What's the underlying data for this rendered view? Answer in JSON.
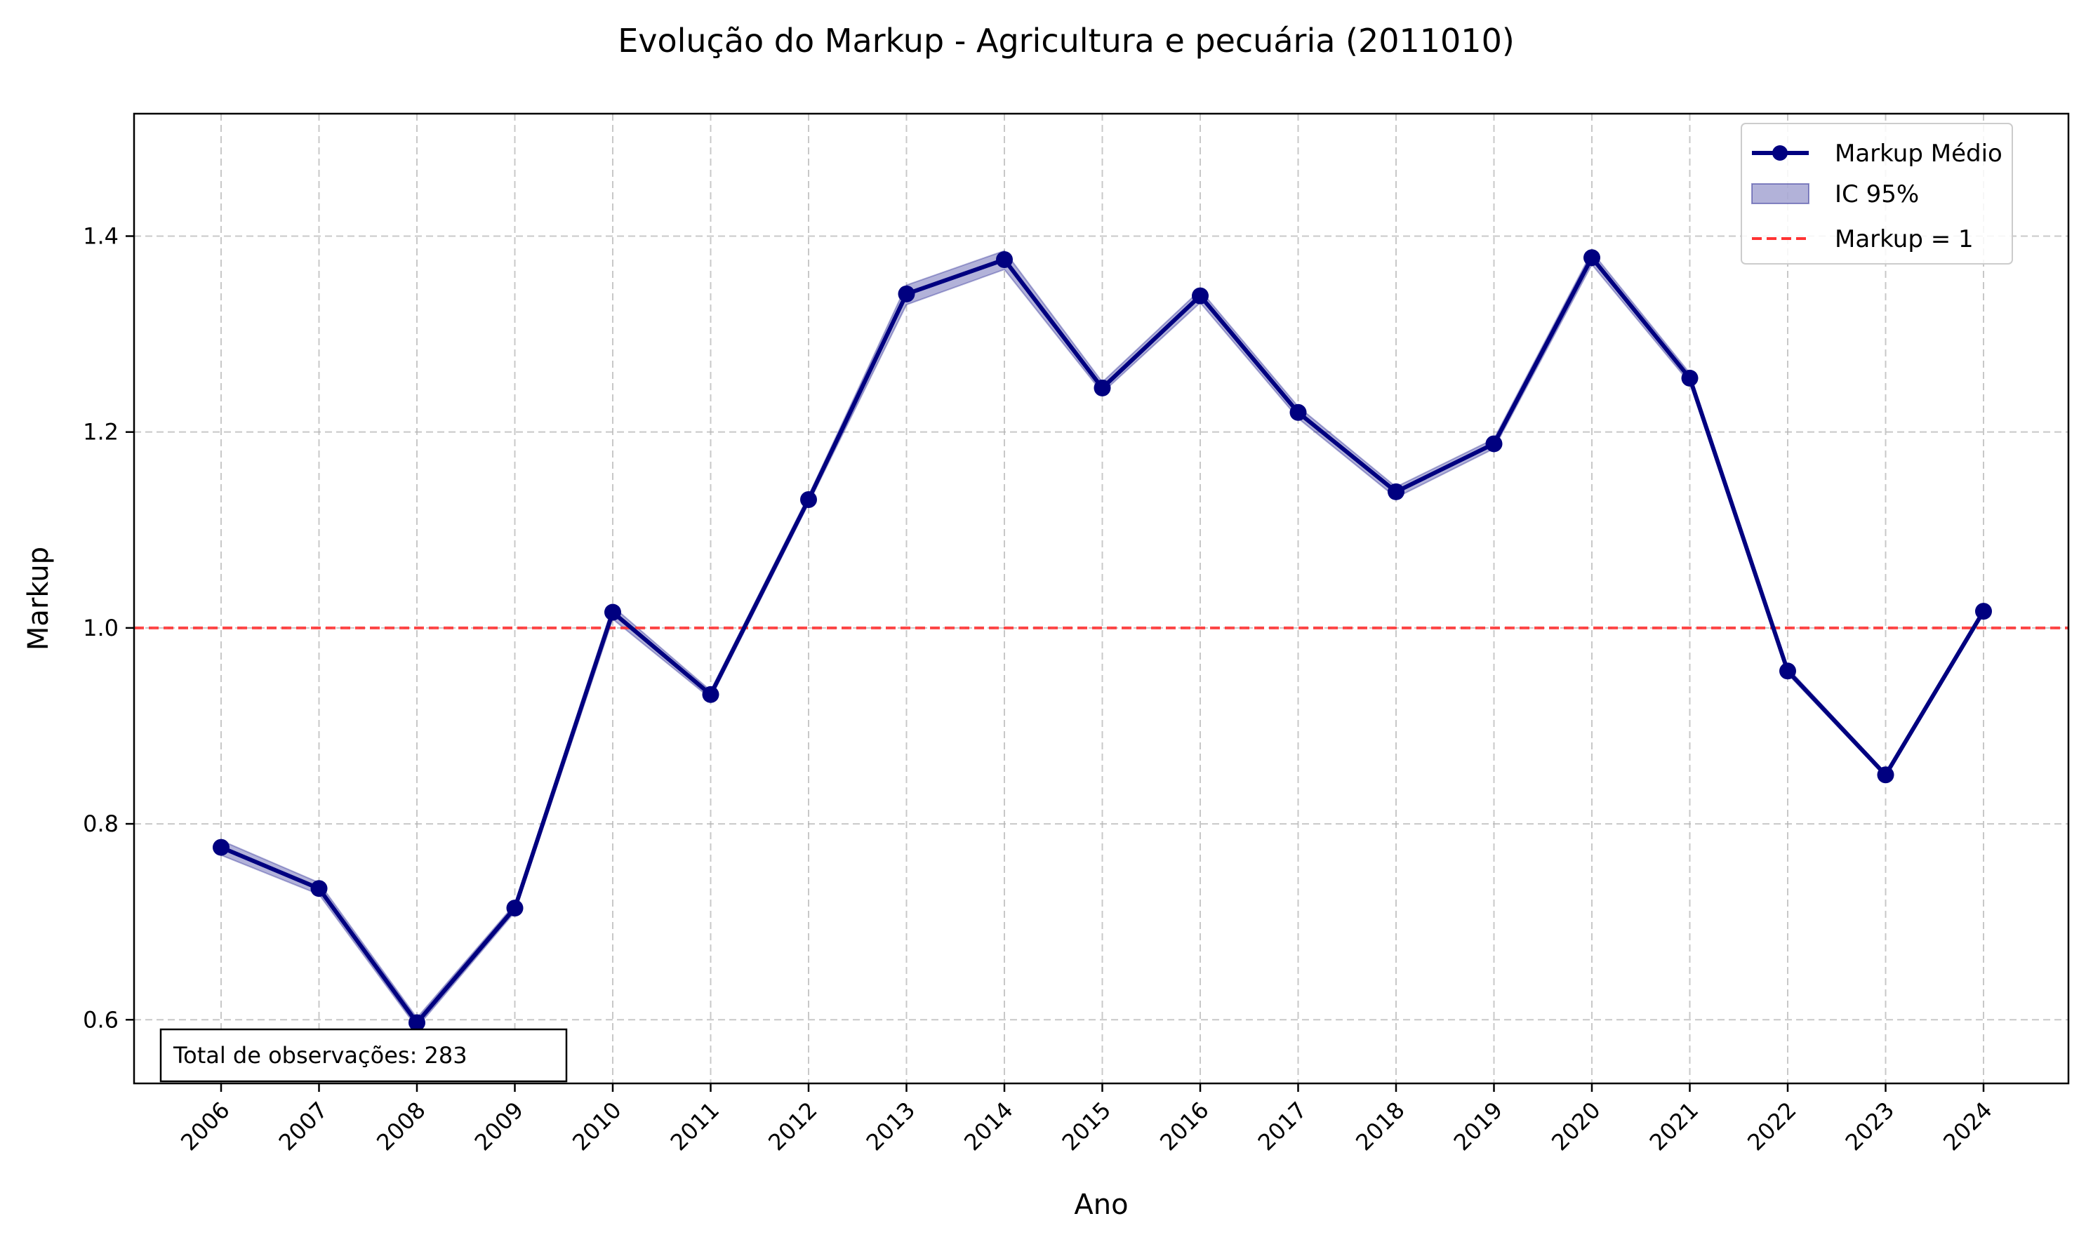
{
  "chart_data": {
    "type": "line",
    "title": "Evolução do Markup - Agricultura e pecuária (2011010)",
    "xlabel": "Ano",
    "ylabel": "Markup",
    "x": [
      "2006",
      "2007",
      "2008",
      "2009",
      "2010",
      "2011",
      "2012",
      "2013",
      "2014",
      "2015",
      "2016",
      "2017",
      "2018",
      "2019",
      "2020",
      "2021",
      "2022",
      "2023",
      "2024"
    ],
    "series": [
      {
        "name": "Markup Médio",
        "color": "#000080",
        "values": [
          0.776,
          0.734,
          0.597,
          0.714,
          1.016,
          0.932,
          1.131,
          1.341,
          1.376,
          1.245,
          1.339,
          1.22,
          1.139,
          1.188,
          1.378,
          1.255,
          0.956,
          0.85,
          1.017
        ]
      }
    ],
    "ci": {
      "name": "IC 95%",
      "color": "#000080",
      "lower": [
        0.768,
        0.728,
        0.592,
        0.71,
        1.009,
        0.928,
        1.127,
        1.33,
        1.366,
        1.24,
        1.332,
        1.214,
        1.133,
        1.183,
        1.371,
        1.25,
        0.953,
        0.848,
        1.014
      ],
      "upper": [
        0.783,
        0.74,
        0.602,
        0.718,
        1.022,
        0.936,
        1.135,
        1.35,
        1.385,
        1.251,
        1.345,
        1.226,
        1.144,
        1.193,
        1.384,
        1.26,
        0.959,
        0.852,
        1.02
      ]
    },
    "reference_line": {
      "name": "Markup = 1",
      "y": 1.0,
      "color": "#ff3333",
      "style": "dashed"
    },
    "yticks": [
      0.6,
      0.8,
      1.0,
      1.2,
      1.4
    ],
    "ylim": [
      0.535,
      1.525
    ],
    "grid": true,
    "legend_position": "top-right",
    "annotation": "Total de observações: 283"
  }
}
